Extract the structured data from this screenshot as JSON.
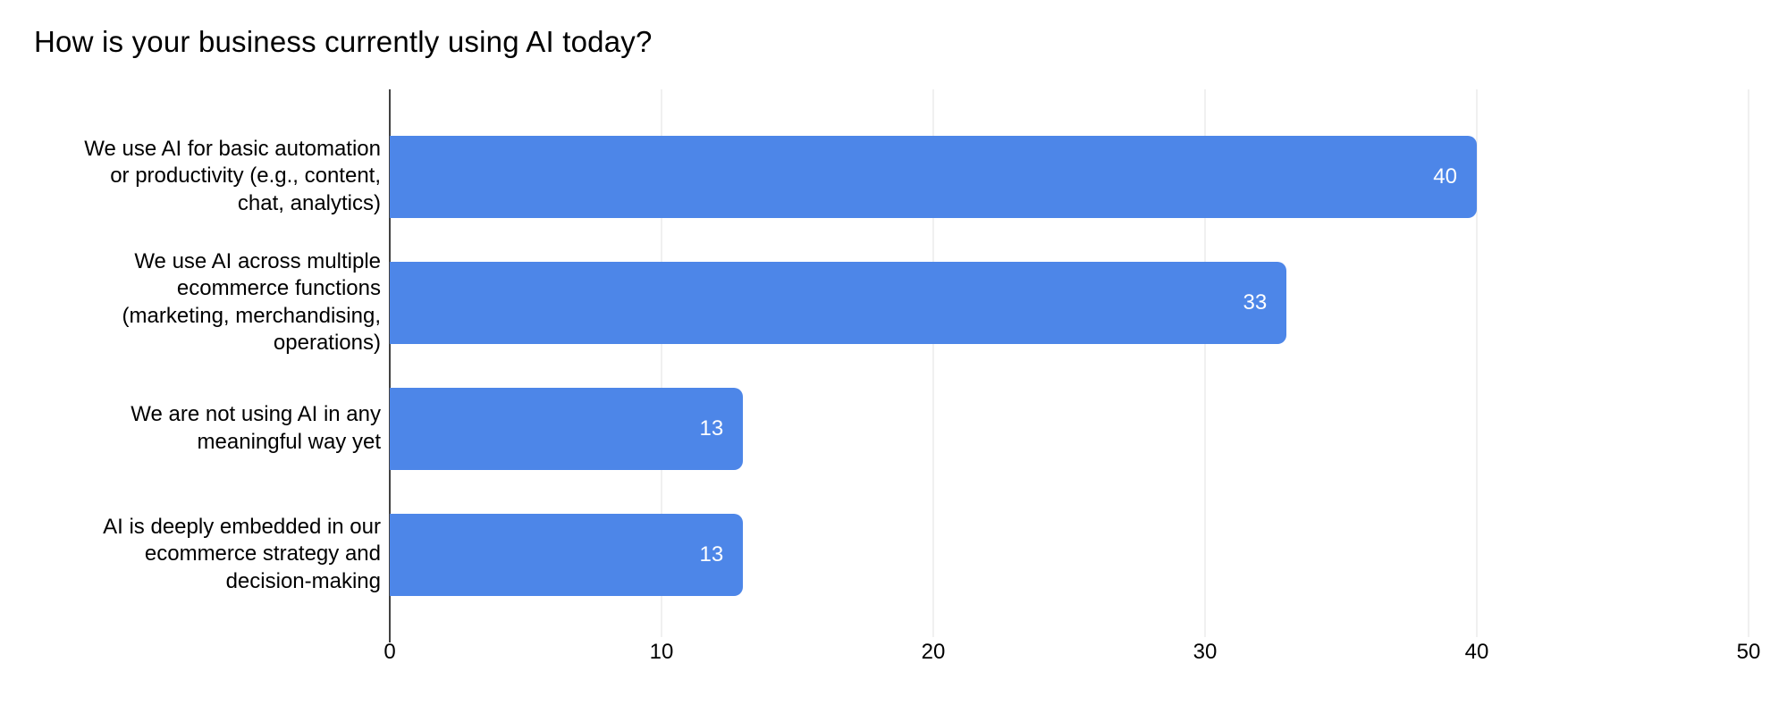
{
  "chart_data": {
    "type": "bar",
    "orientation": "horizontal",
    "title": "How is your business currently using AI today?",
    "categories": [
      "We use AI for basic automation\nor productivity (e.g., content,\nchat, analytics)",
      "We use AI across multiple\necommerce functions\n(marketing, merchandising,\noperations)",
      "We are not using AI in any\nmeaningful way yet",
      "AI is deeply embedded in our\necommerce strategy and\ndecision-making"
    ],
    "values": [
      40,
      33,
      13,
      13
    ],
    "value_labels": [
      "40",
      "33",
      "13",
      "13"
    ],
    "xlabel": "",
    "ylabel": "",
    "xlim": [
      0,
      50
    ],
    "xticks": [
      "0",
      "10",
      "20",
      "30",
      "40",
      "50"
    ],
    "grid": true,
    "legend": false,
    "colors": {
      "bar": "#4d86e8",
      "value_label": "#ffffff",
      "gridline": "#e2e2e2",
      "axis_line": "#424242",
      "text": "#000000",
      "background": "#ffffff"
    }
  }
}
